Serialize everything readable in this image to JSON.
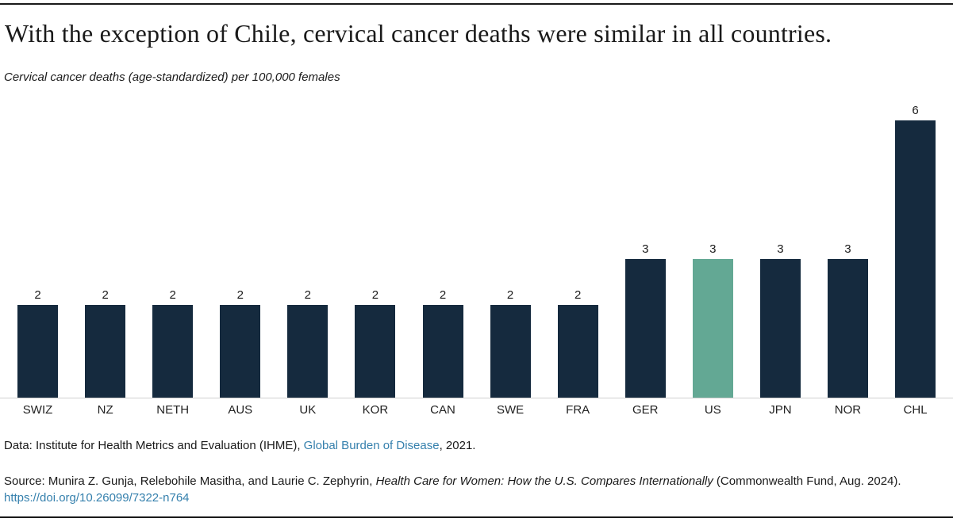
{
  "page": {
    "title": "With the exception of Chile, cervical cancer deaths were similar in all countries.",
    "subtitle": "Cervical cancer deaths (age-standardized) per 100,000 females"
  },
  "chart_data": {
    "type": "bar",
    "title": "With the exception of Chile, cervical cancer deaths were similar in all countries.",
    "subtitle": "Cervical cancer deaths (age-standardized) per 100,000 females",
    "categories": [
      "SWIZ",
      "NZ",
      "NETH",
      "AUS",
      "UK",
      "KOR",
      "CAN",
      "SWE",
      "FRA",
      "GER",
      "US",
      "JPN",
      "NOR",
      "CHL"
    ],
    "values": [
      2,
      2,
      2,
      2,
      2,
      2,
      2,
      2,
      2,
      3,
      3,
      3,
      3,
      6
    ],
    "value_labels": [
      "2",
      "2",
      "2",
      "2",
      "2",
      "2",
      "2",
      "2",
      "2",
      "3",
      "3",
      "3",
      "3",
      "6"
    ],
    "xlabel": "",
    "ylabel": "Cervical cancer deaths (age-standardized) per 100,000 females",
    "ylim": [
      0,
      6
    ],
    "grid": false,
    "legend": "none",
    "y_axis_labels_visible": false,
    "highlight_category": "US",
    "highlight_index": 10,
    "colors": {
      "bar": "#152A3E",
      "highlight_bar": "#63A894",
      "axis_line": "#CFCFCF",
      "text": "#1A1A1A",
      "link": "#3580AD"
    }
  },
  "footer": {
    "data_prefix": "Data: Institute for Health Metrics and Evaluation (IHME), ",
    "data_link": "Global Burden of Disease",
    "data_suffix": ", 2021.",
    "source_prefix": "Source: Munira Z. Gunja, Relebohile Masitha, and Laurie C. Zephyrin, ",
    "source_italic": "Health Care for Women: How the U.S. Compares Internationally",
    "source_suffix": " (Commonwealth Fund, Aug. 2024).",
    "doi_link": "https://doi.org/10.26099/7322-n764"
  }
}
